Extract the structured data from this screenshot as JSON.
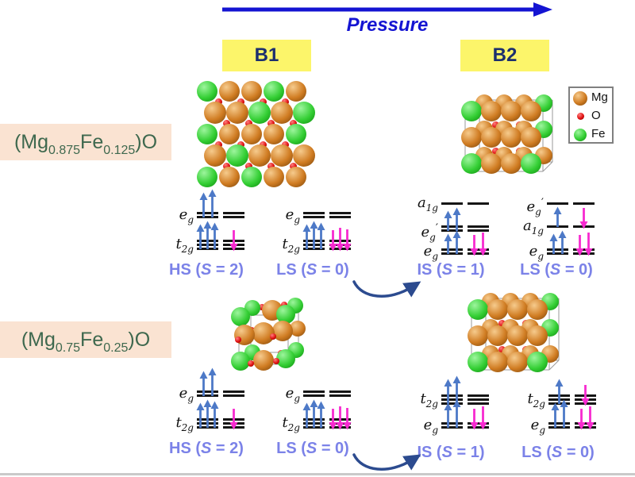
{
  "header": {
    "pressure_label": "Pressure",
    "b1": "B1",
    "b2": "B2"
  },
  "legend": {
    "items": [
      {
        "label": "Mg",
        "key": "mg"
      },
      {
        "label": "O",
        "key": "o"
      },
      {
        "label": "Fe",
        "key": "fe"
      }
    ]
  },
  "formulas": [
    {
      "parts": [
        {
          "t": "(Mg"
        },
        {
          "t": "0.875",
          "sub": true
        },
        {
          "t": "Fe"
        },
        {
          "t": "0.125",
          "sub": true
        },
        {
          "t": ")O"
        }
      ]
    },
    {
      "parts": [
        {
          "t": "(Mg"
        },
        {
          "t": "0.75",
          "sub": true
        },
        {
          "t": "Fe"
        },
        {
          "t": "0.25",
          "sub": true
        },
        {
          "t": ")O"
        }
      ]
    }
  ],
  "crystals": [
    {
      "structure": "B1",
      "variant": "large"
    },
    {
      "structure": "B2",
      "variant": "normal"
    },
    {
      "structure": "B1",
      "variant": "small"
    },
    {
      "structure": "B2",
      "variant": "normal"
    }
  ],
  "spin_diagrams": [
    {
      "id": "row1-b1-hs",
      "levels": [
        {
          "label": {
            "main": "e",
            "sub": "g"
          },
          "lines": 2,
          "left": {
            "up": 2
          },
          "right": {}
        },
        {
          "label": {
            "main": "t",
            "sub": "2g"
          },
          "lines": 3,
          "left": {
            "up": 3
          },
          "right": {
            "down": 1
          }
        }
      ],
      "state": {
        "prefix": "HS (",
        "s": "S",
        "suffix": " = 2)"
      }
    },
    {
      "id": "row1-b1-ls",
      "levels": [
        {
          "label": {
            "main": "e",
            "sub": "g"
          },
          "lines": 2,
          "left": {},
          "right": {}
        },
        {
          "label": {
            "main": "t",
            "sub": "2g"
          },
          "lines": 3,
          "left": {
            "up": 3
          },
          "right": {
            "down": 3
          }
        }
      ],
      "state": {
        "prefix": "LS (",
        "s": "S",
        "suffix": " = 0)"
      }
    },
    {
      "id": "row1-b2-is",
      "levels": [
        {
          "label": {
            "main": "a",
            "sub": "1g"
          },
          "lines": 1,
          "left": {},
          "right": {}
        },
        {
          "label": {
            "main": "e",
            "sub": "g",
            "prime": true
          },
          "lines": 2,
          "left": {
            "up": 2
          },
          "right": {}
        },
        {
          "label": {
            "main": "e",
            "sub": "g"
          },
          "lines": 2,
          "left": {
            "up": 2
          },
          "right": {
            "down": 2
          }
        }
      ],
      "state": {
        "prefix": "IS (",
        "s": "S",
        "suffix": " = 1)"
      }
    },
    {
      "id": "row1-b2-ls",
      "levels": [
        {
          "label": {
            "main": "e",
            "sub": "g",
            "prime": true
          },
          "lines": 1,
          "left": {},
          "right": {}
        },
        {
          "label": {
            "main": "a",
            "sub": "1g"
          },
          "lines": 1,
          "left": {
            "up": 1
          },
          "right": {
            "down": 1
          }
        },
        {
          "label": {
            "main": "e",
            "sub": "g"
          },
          "lines": 2,
          "left": {
            "up": 2
          },
          "right": {
            "down": 2
          }
        }
      ],
      "state": {
        "prefix": "LS (",
        "s": "S",
        "suffix": " = 0)"
      }
    },
    {
      "id": "row2-b1-hs",
      "levels": [
        {
          "label": {
            "main": "e",
            "sub": "g"
          },
          "lines": 2,
          "left": {
            "up": 2
          },
          "right": {}
        },
        {
          "label": {
            "main": "t",
            "sub": "2g"
          },
          "lines": 3,
          "left": {
            "up": 3
          },
          "right": {
            "down": 1
          }
        }
      ],
      "state": {
        "prefix": "HS (",
        "s": "S",
        "suffix": " = 2)"
      }
    },
    {
      "id": "row2-b1-ls",
      "levels": [
        {
          "label": {
            "main": "e",
            "sub": "g"
          },
          "lines": 2,
          "left": {},
          "right": {}
        },
        {
          "label": {
            "main": "t",
            "sub": "2g"
          },
          "lines": 3,
          "left": {
            "up": 3
          },
          "right": {
            "down": 3
          }
        }
      ],
      "state": {
        "prefix": "LS (",
        "s": "S",
        "suffix": " = 0)"
      }
    },
    {
      "id": "row2-b2-is",
      "levels": [
        {
          "label": {
            "main": "t",
            "sub": "2g"
          },
          "lines": 3,
          "left": {
            "up": 2
          },
          "right": {}
        },
        {
          "label": {
            "main": "e",
            "sub": "g"
          },
          "lines": 2,
          "left": {
            "up": 2
          },
          "right": {
            "down": 2
          }
        }
      ],
      "state": {
        "prefix": "IS (",
        "s": "S",
        "suffix": " = 1)"
      }
    },
    {
      "id": "row2-b2-ls",
      "levels": [
        {
          "label": {
            "main": "t",
            "sub": "2g"
          },
          "lines": 3,
          "left": {
            "up": 1
          },
          "right": {
            "down": 1
          }
        },
        {
          "label": {
            "main": "e",
            "sub": "g"
          },
          "lines": 2,
          "left": {
            "up": 2
          },
          "right": {
            "down": 2
          }
        }
      ],
      "state": {
        "prefix": "LS (",
        "s": "S",
        "suffix": " = 0)"
      }
    }
  ],
  "colors": {
    "pressure_blue": "#1414d2",
    "phase_yellow": "#fcf56a",
    "phase_text": "#1c2f6e",
    "spin_label": "#7b82e8",
    "arrow_up": "#4d79c7",
    "arrow_down": "#f72ad0",
    "transition_arrow": "#2c4b8f",
    "formula_bg": "#fae3d2",
    "formula_text": "#3e684e",
    "level_line": "#151515",
    "mg": {
      "base": "#d07c22",
      "light": "#f6cb8d",
      "dark": "#7e470b"
    },
    "o": {
      "base": "#e01010",
      "light": "#ff8080",
      "dark": "#7a0202"
    },
    "fe": {
      "base": "#35cf35",
      "light": "#9df59d",
      "dark": "#0e8f0e"
    }
  }
}
